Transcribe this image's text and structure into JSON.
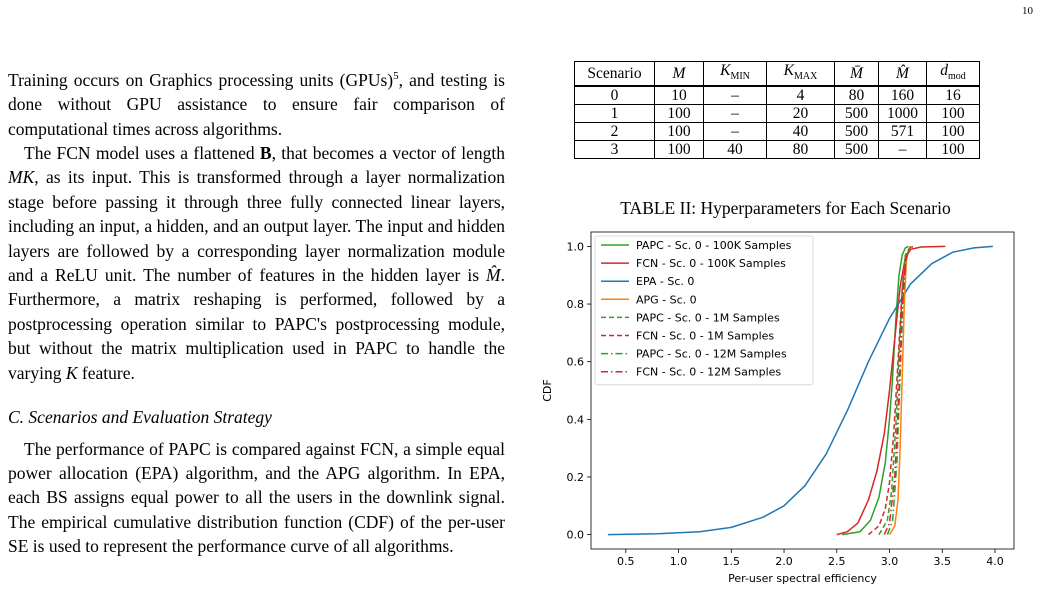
{
  "page_number": "10",
  "left": {
    "p1": {
      "a": "Training occurs on Graphics processing units (GPUs)",
      "sup": "5",
      "b": ", and testing is done without GPU assistance to ensure fair comparison of computational times across algorithms."
    },
    "p2": {
      "a": "The FCN model uses a flattened ",
      "b_sym": "B",
      "b": ", that becomes a vector of length ",
      "mk": "MK",
      "c": ", as its input. This is transformed through a layer normalization stage before passing it through three fully connected linear layers, including an input, a hidden, and an output layer. The input and hidden layers are followed by a corresponding layer normalization module and a ReLU unit. The number of features in the hidden layer is ",
      "mhat": "M̂",
      "d": ". Furthermore, a matrix reshaping is performed, followed by a postprocessing operation similar to PAPC's postprocessing module, but without the matrix multiplication used in PAPC to handle the varying ",
      "k": "K",
      "e": " feature."
    },
    "heading": "C. Scenarios and Evaluation Strategy",
    "p3": "The performance of PAPC is compared against FCN, a simple equal power allocation (EPA) algorithm, and the APG algorithm. In EPA, each BS assigns equal power to all the users in the downlink signal. The empirical cumulative distribution function (CDF) of the per-user SE is used to represent the performance curve of all algorithms."
  },
  "table": {
    "headers": {
      "scenario": "Scenario",
      "m": "M",
      "kmin_base": "K",
      "kmin_sub": "MIN",
      "kmax_base": "K",
      "kmax_sub": "MAX",
      "mbar": "M̄",
      "mhat": "M̂",
      "dmod_base": "d",
      "dmod_sub": "mod"
    },
    "rows": [
      {
        "scenario": "0",
        "m": "10",
        "kmin": "–",
        "kmax": "4",
        "mbar": "80",
        "mhat": "160",
        "dmod": "16"
      },
      {
        "scenario": "1",
        "m": "100",
        "kmin": "–",
        "kmax": "20",
        "mbar": "500",
        "mhat": "1000",
        "dmod": "100"
      },
      {
        "scenario": "2",
        "m": "100",
        "kmin": "–",
        "kmax": "40",
        "mbar": "500",
        "mhat": "571",
        "dmod": "100"
      },
      {
        "scenario": "3",
        "m": "100",
        "kmin": "40",
        "kmax": "80",
        "mbar": "500",
        "mhat": "–",
        "dmod": "100"
      }
    ],
    "caption": "TABLE II: Hyperparameters for Each Scenario"
  },
  "chart_data": {
    "type": "line",
    "title": "",
    "xlabel": "Per-user spectral efficiency",
    "ylabel": "CDF",
    "xlim": [
      0.17,
      4.18
    ],
    "ylim": [
      -0.05,
      1.05
    ],
    "xticks": [
      "0.5",
      "1.0",
      "1.5",
      "2.0",
      "2.5",
      "3.0",
      "3.5",
      "4.0"
    ],
    "yticks": [
      "0.0",
      "0.2",
      "0.4",
      "0.6",
      "0.8",
      "1.0"
    ],
    "grid": false,
    "legend_position": "upper-left",
    "series": [
      {
        "name": "PAPC - Sc. 0 - 100K Samples",
        "color": "#2ca02c",
        "style": "solid",
        "x": [
          2.55,
          2.72,
          2.82,
          2.9,
          2.96,
          3.0,
          3.03,
          3.06,
          3.09,
          3.12,
          3.15,
          3.18
        ],
        "y": [
          0.0,
          0.01,
          0.05,
          0.13,
          0.25,
          0.4,
          0.55,
          0.75,
          0.9,
          0.97,
          0.995,
          1.0
        ]
      },
      {
        "name": "FCN - Sc. 0 - 100K Samples",
        "color": "#d62728",
        "style": "solid",
        "x": [
          2.5,
          2.6,
          2.7,
          2.8,
          2.88,
          2.95,
          3.0,
          3.05,
          3.1,
          3.15,
          3.2,
          3.3,
          3.53
        ],
        "y": [
          0.0,
          0.01,
          0.04,
          0.12,
          0.22,
          0.35,
          0.5,
          0.68,
          0.86,
          0.96,
          0.99,
          0.998,
          1.0
        ]
      },
      {
        "name": "EPA - Sc. 0",
        "color": "#1f77b4",
        "style": "solid",
        "x": [
          0.33,
          0.8,
          1.2,
          1.5,
          1.8,
          2.0,
          2.2,
          2.4,
          2.6,
          2.8,
          3.0,
          3.2,
          3.4,
          3.6,
          3.8,
          3.98
        ],
        "y": [
          0.0,
          0.003,
          0.01,
          0.025,
          0.06,
          0.1,
          0.17,
          0.28,
          0.43,
          0.6,
          0.75,
          0.87,
          0.94,
          0.98,
          0.995,
          1.0
        ]
      },
      {
        "name": "APG - Sc. 0",
        "color": "#ff7f0e",
        "style": "solid",
        "x": [
          3.0,
          3.05,
          3.08,
          3.1,
          3.12,
          3.14,
          3.16,
          3.18,
          3.22
        ],
        "y": [
          0.0,
          0.03,
          0.12,
          0.3,
          0.55,
          0.8,
          0.95,
          0.99,
          1.0
        ]
      },
      {
        "name": "PAPC - Sc. 0 - 1M Samples",
        "color": "#2ca02c",
        "style": "dashed",
        "x": [
          2.9,
          2.98,
          3.02,
          3.06,
          3.09,
          3.12,
          3.15,
          3.2
        ],
        "y": [
          0.0,
          0.05,
          0.15,
          0.38,
          0.62,
          0.85,
          0.97,
          1.0
        ]
      },
      {
        "name": "FCN - Sc. 0 - 1M Samples",
        "color": "#d62728",
        "style": "dashed",
        "x": [
          2.8,
          2.9,
          2.96,
          3.0,
          3.04,
          3.08,
          3.12,
          3.16,
          3.22
        ],
        "y": [
          0.0,
          0.03,
          0.09,
          0.18,
          0.35,
          0.6,
          0.85,
          0.97,
          1.0
        ]
      },
      {
        "name": "PAPC - Sc. 0 - 12M Samples",
        "color": "#2ca02c",
        "style": "dashdot",
        "x": [
          2.98,
          3.03,
          3.07,
          3.1,
          3.13,
          3.16,
          3.2
        ],
        "y": [
          0.0,
          0.05,
          0.25,
          0.55,
          0.83,
          0.97,
          1.0
        ]
      },
      {
        "name": "FCN - Sc. 0 - 12M Samples",
        "color": "#d62728",
        "style": "dashdot",
        "x": [
          2.95,
          3.0,
          3.05,
          3.09,
          3.12,
          3.15,
          3.2
        ],
        "y": [
          0.0,
          0.04,
          0.2,
          0.5,
          0.78,
          0.95,
          1.0
        ]
      }
    ]
  }
}
